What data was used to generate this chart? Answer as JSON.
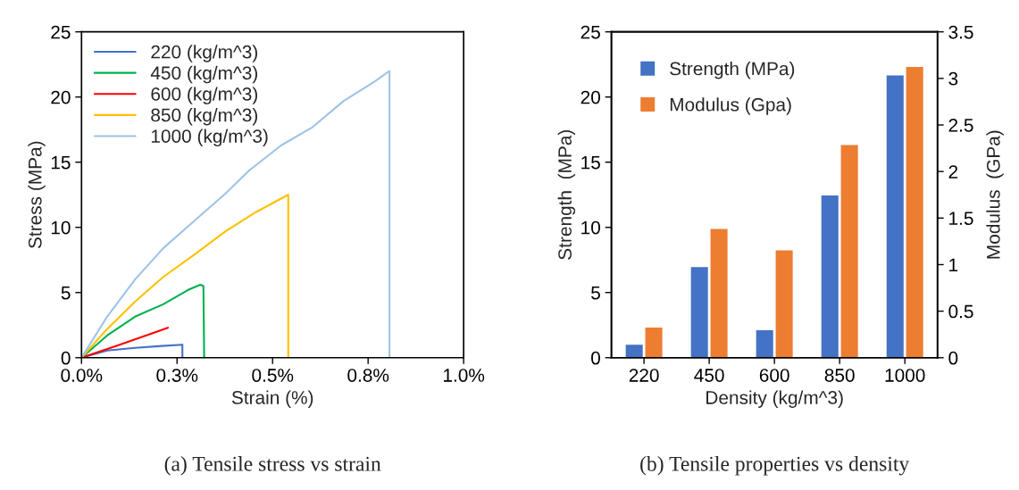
{
  "chart_data": [
    {
      "type": "line",
      "xlabel": "Strain (%)",
      "ylabel": "Stress (MPa)",
      "xlim": [
        0,
        1.0
      ],
      "ylim": [
        0,
        25
      ],
      "xticks": [
        {
          "value": 0,
          "label": "0.0%"
        },
        {
          "value": 0.25,
          "label": "0.3%"
        },
        {
          "value": 0.5,
          "label": "0.5%"
        },
        {
          "value": 0.75,
          "label": "0.8%"
        },
        {
          "value": 1.0,
          "label": "1.0%"
        }
      ],
      "yticks": [
        0,
        5,
        10,
        15,
        20,
        25
      ],
      "grid": false,
      "legend": "top left",
      "marker": "none",
      "line_style": "solid",
      "annotations": [
        "(a) Tensile stress vs strain"
      ],
      "series": [
        {
          "name": "220 (kg/m^3)",
          "color": "#4472c4",
          "x": [
            0,
            0.067,
            0.14,
            0.21,
            0.264,
            0.264
          ],
          "values": [
            0,
            0.55,
            0.75,
            0.9,
            1.0,
            0
          ]
        },
        {
          "name": "450 (kg/m^3)",
          "color": "#00b050",
          "x": [
            0,
            0.067,
            0.14,
            0.214,
            0.279,
            0.311,
            0.319,
            0.321
          ],
          "values": [
            0,
            1.7,
            3.15,
            4.1,
            5.2,
            5.6,
            5.5,
            0
          ]
        },
        {
          "name": "600 (kg/m^3)",
          "color": "#ff0000",
          "x": [
            0,
            0.1,
            0.226
          ],
          "values": [
            0,
            1.0,
            2.3
          ]
        },
        {
          "name": "850 (kg/m^3)",
          "color": "#ffc000",
          "x": [
            0,
            0.067,
            0.14,
            0.214,
            0.295,
            0.377,
            0.458,
            0.541,
            0.541
          ],
          "values": [
            0,
            2.2,
            4.3,
            6.2,
            7.9,
            9.7,
            11.2,
            12.5,
            0
          ]
        },
        {
          "name": "1000 (kg/m^3)",
          "color": "#9dc3e6",
          "x": [
            0,
            0.067,
            0.14,
            0.214,
            0.295,
            0.377,
            0.44,
            0.523,
            0.605,
            0.686,
            0.768,
            0.806,
            0.806
          ],
          "values": [
            0,
            3.15,
            6.0,
            8.4,
            10.5,
            12.6,
            14.4,
            16.3,
            17.7,
            19.7,
            21.2,
            22.0,
            0
          ]
        }
      ]
    },
    {
      "type": "bar",
      "xlabel": "Density (kg/m^3)",
      "ylabel": "Strength  (MPa)",
      "y2label": "Modulus  (GPa)",
      "categories": [
        "220",
        "450",
        "600",
        "850",
        "1000"
      ],
      "ylim": [
        0,
        25
      ],
      "yticks": [
        0,
        5,
        10,
        15,
        20,
        25
      ],
      "y2lim": [
        0,
        3.5
      ],
      "y2ticks": [
        0,
        0.5,
        1,
        1.5,
        2,
        2.5,
        3,
        3.5
      ],
      "grid": false,
      "legend": "top left",
      "annotations": [
        "(b) Tensile properties vs density"
      ],
      "series": [
        {
          "name": "Strength (MPa)",
          "color": "#4472c4",
          "values": [
            1.05,
            7.0,
            2.15,
            12.5,
            21.7
          ]
        },
        {
          "name": "Modulus (Gpa)",
          "color": "#ed7d31",
          "axis": "y2",
          "values": [
            0.33,
            1.39,
            1.16,
            2.29,
            3.13
          ]
        }
      ]
    }
  ]
}
